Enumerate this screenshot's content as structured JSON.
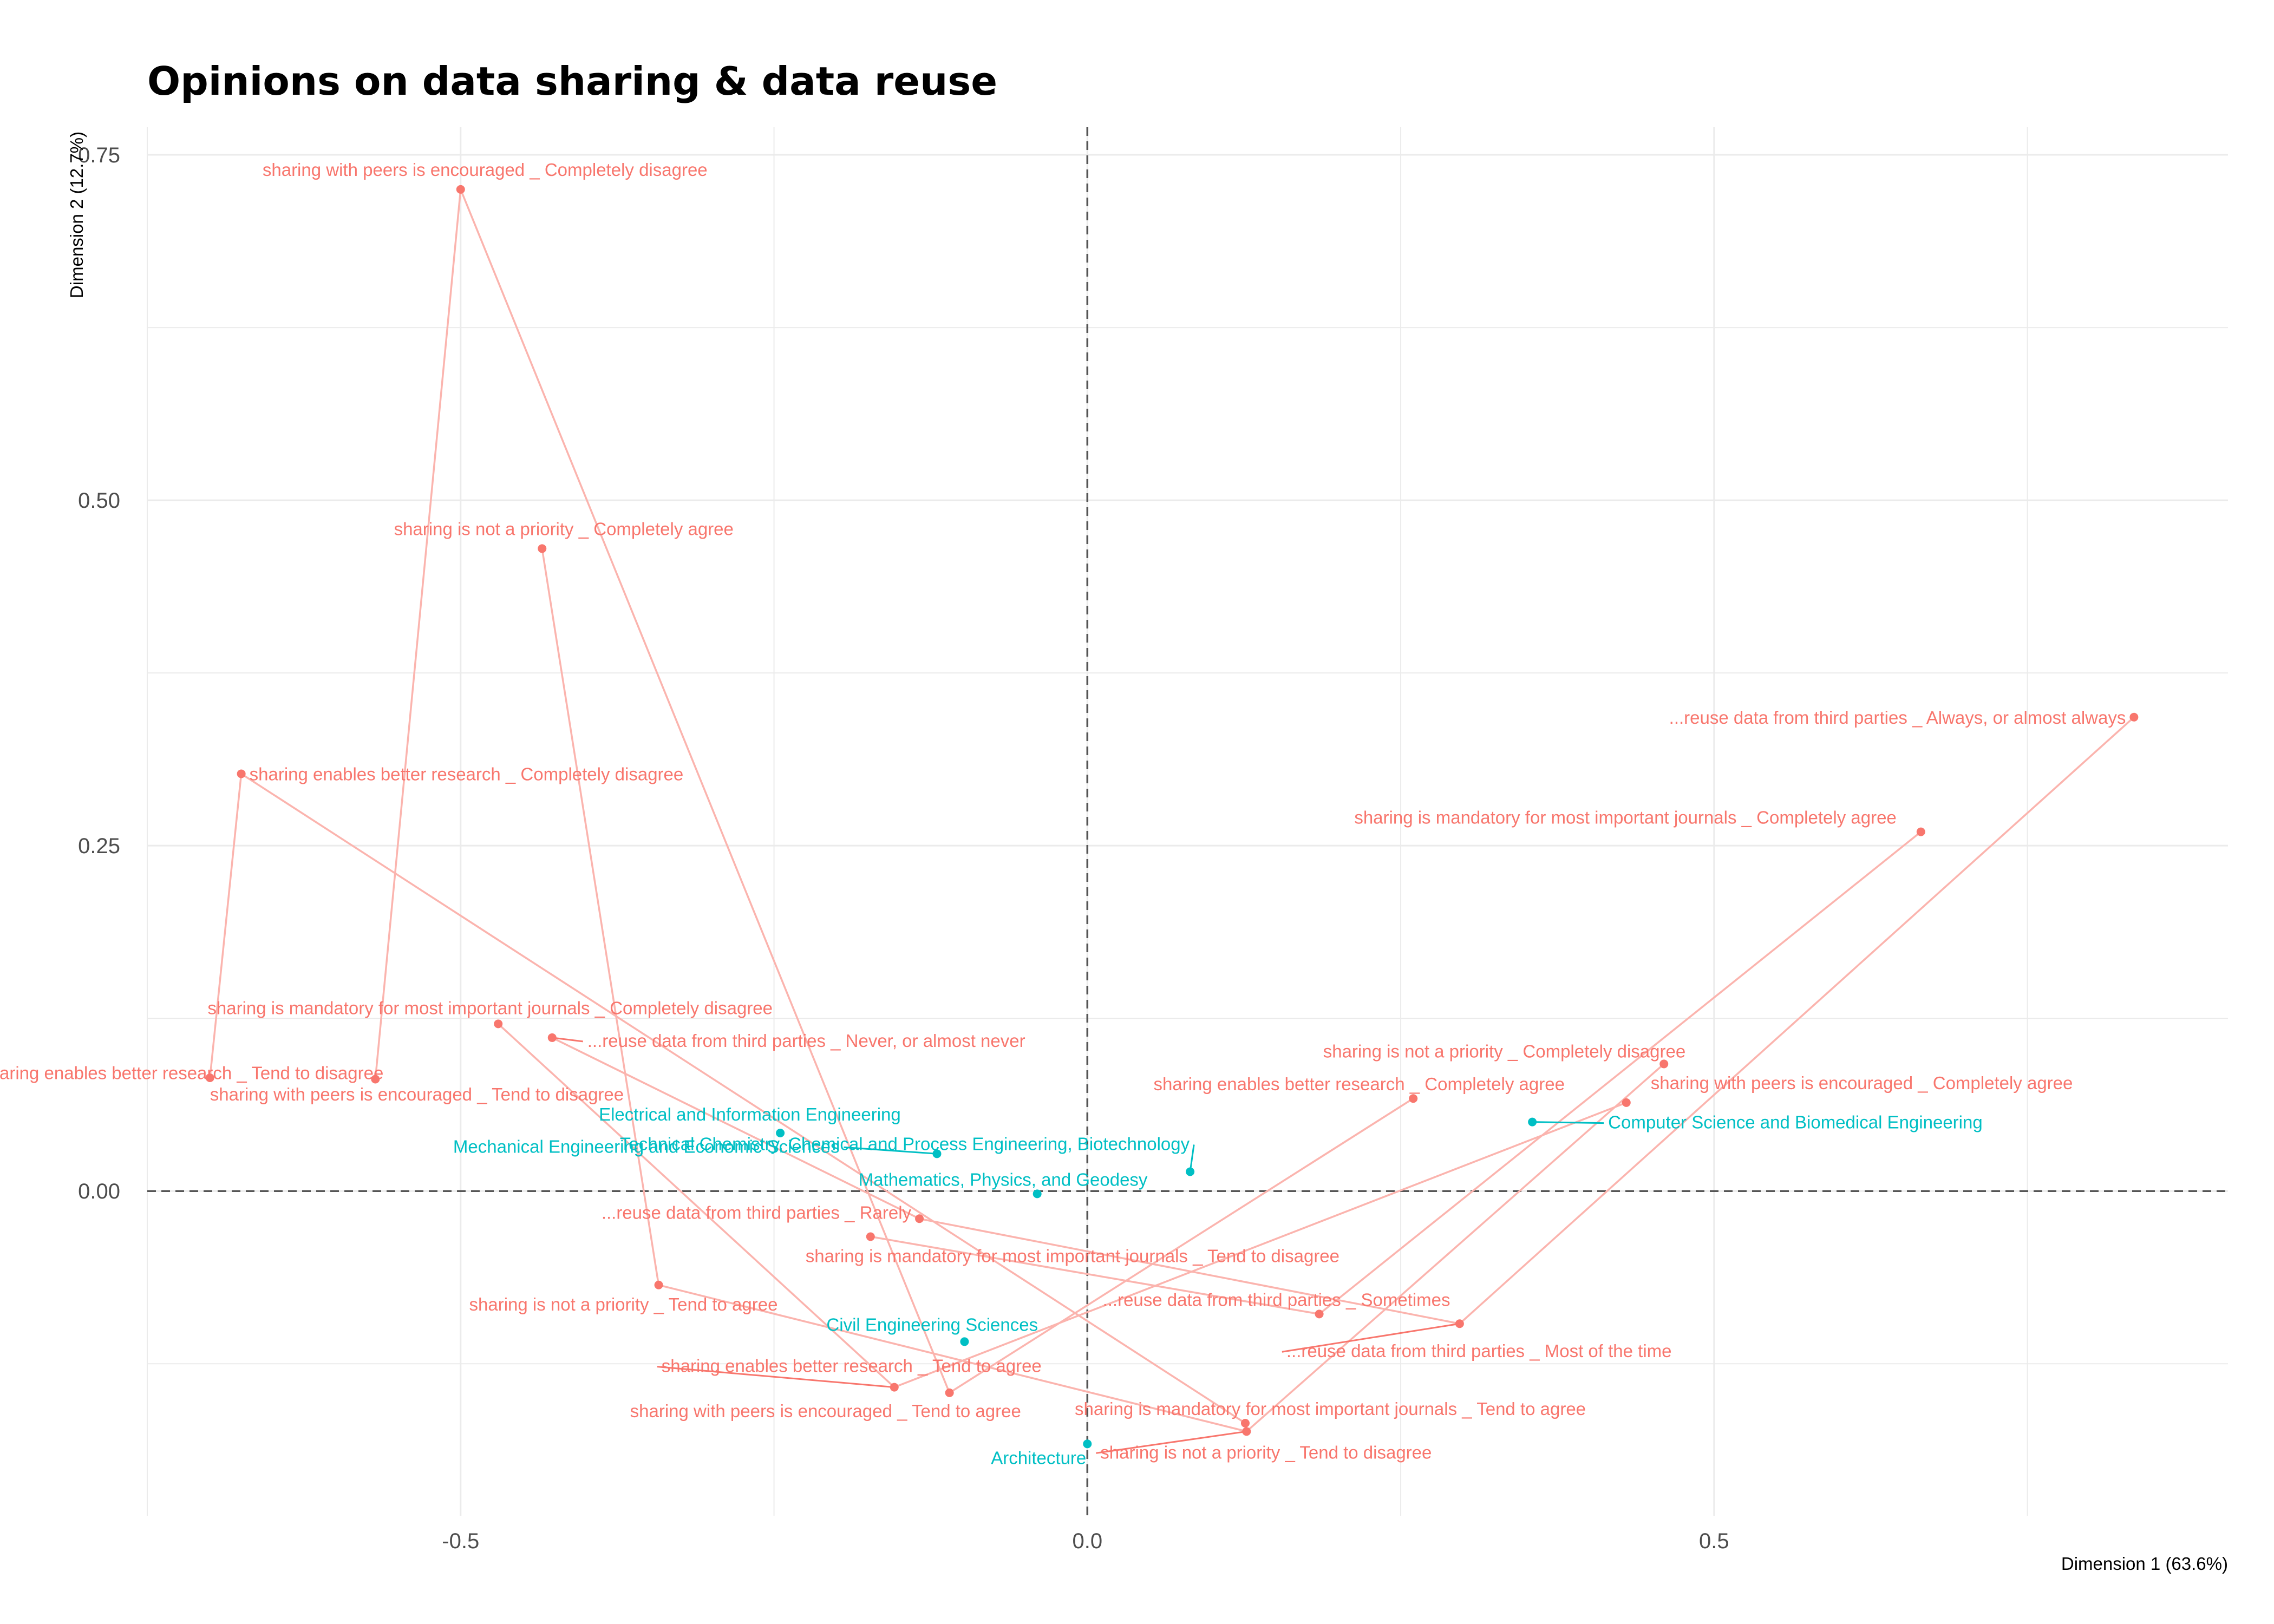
{
  "chart_data": {
    "type": "scatter",
    "title": "Opinions on data sharing & data reuse",
    "xlabel": "Dimension 1 (63.6%)",
    "ylabel": "Dimension 2 (12.7%)",
    "xlim": [
      -0.75,
      0.91
    ],
    "ylim": [
      -0.235,
      0.77
    ],
    "x_ticks": [
      {
        "value": -0.5,
        "label": "-0.5"
      },
      {
        "value": 0.0,
        "label": "0.0"
      },
      {
        "value": 0.5,
        "label": "0.5"
      }
    ],
    "y_ticks": [
      {
        "value": 0.0,
        "label": "0.00"
      },
      {
        "value": 0.25,
        "label": "0.25"
      },
      {
        "value": 0.5,
        "label": "0.50"
      },
      {
        "value": 0.75,
        "label": "0.75"
      }
    ],
    "x_minor_grid": [
      -0.75,
      -0.25,
      0.25,
      0.75
    ],
    "y_minor_grid": [
      -0.125,
      0.125,
      0.375,
      0.625
    ],
    "reference_lines": {
      "x": 0,
      "y": 0,
      "style": "dashed"
    },
    "grid": true,
    "colors": {
      "variables": "#f8766d",
      "variables_line": "#fbb4ae",
      "individuals": "#00bfc4",
      "reference": "#555555",
      "grid": "#ebebeb"
    },
    "series": [
      {
        "group": "variables",
        "points": [
          {
            "label": "sharing with peers is encouraged _ Completely disagree",
            "x": -0.5,
            "y": 0.725
          },
          {
            "label": "sharing is not a priority _ Completely agree",
            "x": -0.435,
            "y": 0.465
          },
          {
            "label": "sharing enables better research _ Completely disagree",
            "x": -0.675,
            "y": 0.302
          },
          {
            "label": "sharing is mandatory for most important journals _ Completely disagree",
            "x": -0.47,
            "y": 0.121
          },
          {
            "label": "...reuse data from third parties _ Never, or almost never",
            "x": -0.427,
            "y": 0.111
          },
          {
            "label": "sharing enables better research _ Tend to disagree",
            "x": -0.568,
            "y": 0.081
          },
          {
            "label": "sharing with peers is encouraged _ Tend to disagree",
            "x": -0.7,
            "y": 0.082
          },
          {
            "label": "...reuse data from third parties _ Always, or almost always",
            "x": 0.835,
            "y": 0.343
          },
          {
            "label": "sharing is mandatory for most important journals _ Completely agree",
            "x": 0.665,
            "y": 0.26
          },
          {
            "label": "sharing is not a priority _ Completely disagree",
            "x": 0.46,
            "y": 0.092
          },
          {
            "label": "sharing with peers is encouraged _ Completely agree",
            "x": 0.43,
            "y": 0.064
          },
          {
            "label": "sharing enables better research _ Completely agree",
            "x": 0.26,
            "y": 0.067
          },
          {
            "label": "...reuse data from third parties _ Rarely",
            "x": -0.134,
            "y": -0.02
          },
          {
            "label": "sharing is mandatory for most important journals _ Tend to disagree",
            "x": -0.173,
            "y": -0.033
          },
          {
            "label": "sharing is not a priority _ Tend to agree",
            "x": -0.342,
            "y": -0.068
          },
          {
            "label": "...reuse data from third parties _ Sometimes",
            "x": 0.185,
            "y": -0.089
          },
          {
            "label": "...reuse data from third parties _ Most of the time",
            "x": 0.297,
            "y": -0.096
          },
          {
            "label": "sharing enables better research _ Tend to agree",
            "x": -0.154,
            "y": -0.142
          },
          {
            "label": "sharing with peers is encouraged _ Tend to agree",
            "x": -0.11,
            "y": -0.146
          },
          {
            "label": "sharing is mandatory for most important journals _ Tend to agree",
            "x": 0.126,
            "y": -0.168
          },
          {
            "label": "sharing is not a priority _ Tend to disagree",
            "x": 0.127,
            "y": -0.174
          }
        ]
      },
      {
        "group": "individuals",
        "points": [
          {
            "label": "Electrical and Information Engineering",
            "x": -0.245,
            "y": 0.042
          },
          {
            "label": "Mechanical Engineering and Economic Sciences",
            "x": -0.12,
            "y": 0.027
          },
          {
            "label": "Technical Chemistry, Chemical and Process Engineering, Biotechnology",
            "x": 0.082,
            "y": 0.014
          },
          {
            "label": "Mathematics, Physics, and Geodesy",
            "x": -0.04,
            "y": -0.002
          },
          {
            "label": "Computer Science and Biomedical Engineering",
            "x": 0.355,
            "y": 0.05
          },
          {
            "label": "Civil Engineering Sciences",
            "x": -0.098,
            "y": -0.109
          },
          {
            "label": "Architecture",
            "x": 0.0,
            "y": -0.183
          }
        ]
      }
    ],
    "connector_paths": [
      [
        -0.7,
        0.082,
        -0.675,
        0.302,
        0.126,
        -0.168
      ],
      [
        -0.568,
        0.081,
        -0.5,
        0.725,
        -0.11,
        -0.146
      ],
      [
        -0.435,
        0.465,
        -0.342,
        -0.068,
        0.127,
        -0.174,
        0.46,
        0.092
      ],
      [
        -0.47,
        0.121,
        -0.154,
        -0.142,
        0.43,
        0.064
      ],
      [
        -0.427,
        0.111,
        -0.134,
        -0.02,
        0.297,
        -0.096,
        0.835,
        0.343
      ],
      [
        -0.173,
        -0.033,
        0.185,
        -0.089,
        0.665,
        0.26
      ],
      [
        -0.11,
        -0.146,
        0.26,
        0.067
      ]
    ]
  }
}
